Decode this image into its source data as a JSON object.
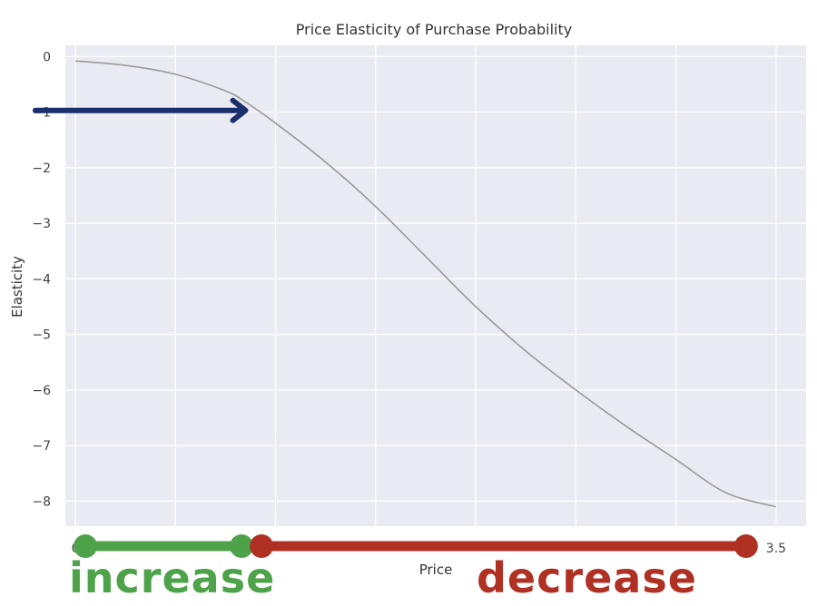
{
  "chart_data": {
    "type": "line",
    "title": "Price Elasticity of Purchase Probability",
    "xlabel": "Price",
    "ylabel": "Elasticity",
    "xlim": [
      -0.05,
      3.65
    ],
    "ylim": [
      -8.45,
      0.2
    ],
    "xtick_labels": [
      {
        "value": 0,
        "label": "0"
      },
      {
        "value": 3.5,
        "label": "3.5"
      }
    ],
    "yticks": [
      0,
      -1,
      -2,
      -3,
      -4,
      -5,
      -6,
      -7,
      -8
    ],
    "ytick_labels": [
      "0",
      "−1",
      "−2",
      "−3",
      "−4",
      "−5",
      "−6",
      "−7",
      "−8"
    ],
    "grid": true,
    "series": [
      {
        "color": "#9a9a9a",
        "x": [
          0.0,
          0.25,
          0.5,
          0.75,
          0.85,
          1.0,
          1.25,
          1.5,
          1.75,
          2.0,
          2.25,
          2.5,
          2.75,
          3.0,
          3.25,
          3.5
        ],
        "y": [
          -0.08,
          -0.16,
          -0.32,
          -0.62,
          -0.82,
          -1.2,
          -1.9,
          -2.7,
          -3.6,
          -4.5,
          -5.3,
          -6.0,
          -6.65,
          -7.25,
          -7.85,
          -8.1
        ]
      }
    ],
    "annotation_arrow": {
      "color": "#1a2f6b",
      "from": [
        -0.2,
        -0.97
      ],
      "to": [
        0.85,
        -0.97
      ]
    },
    "ranges": [
      {
        "label": "increase",
        "color": "#4ea24a",
        "from": 0.05,
        "to": 0.83
      },
      {
        "label": "decrease",
        "color": "#b03024",
        "from": 0.93,
        "to": 3.35
      }
    ]
  }
}
